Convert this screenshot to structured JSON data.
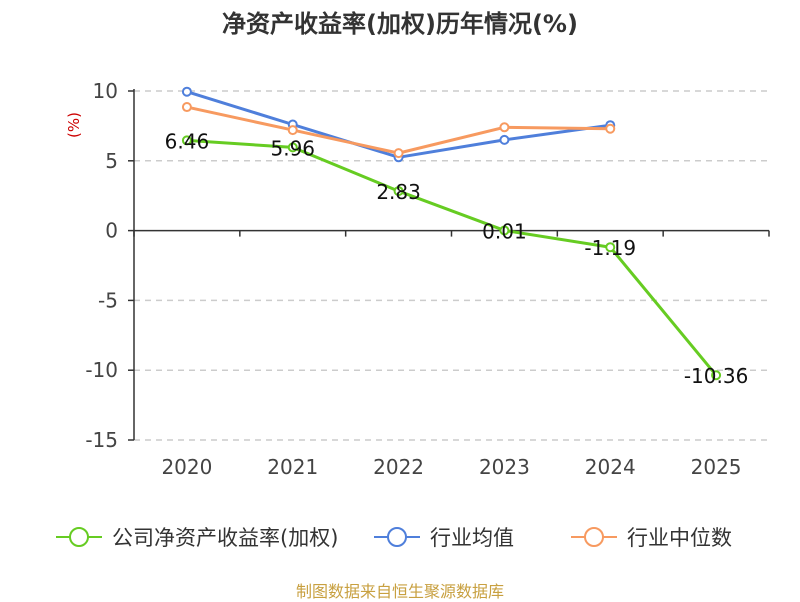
{
  "chart_data": {
    "type": "line",
    "title": "净资产收益率(加权)历年情况(%)",
    "ylabel": "(%)",
    "xlabel": "",
    "categories": [
      "2020",
      "2021",
      "2022",
      "2023",
      "2024",
      "2025"
    ],
    "ylim": [
      -15,
      10
    ],
    "yticks": [
      10,
      5,
      0,
      -5,
      -10,
      -15
    ],
    "ytick_labels": [
      "10",
      "5",
      "0",
      "-5",
      "-10",
      "-15"
    ],
    "grid": "horizontal-dashed",
    "legend_position": "bottom",
    "series": [
      {
        "name": "公司净资产收益率(加权)",
        "color": "#66cc22",
        "values": [
          6.46,
          5.96,
          2.83,
          0.01,
          -1.19,
          -10.36
        ],
        "data_labels": [
          "6.46",
          "5.96",
          "2.83",
          "0.01",
          "-1.19",
          "-10.36"
        ]
      },
      {
        "name": "行业均值",
        "color": "#4f7fdb",
        "values": [
          9.95,
          7.6,
          5.25,
          6.5,
          7.55,
          null
        ]
      },
      {
        "name": "行业中位数",
        "color": "#f79a60",
        "values": [
          8.85,
          7.2,
          5.55,
          7.4,
          7.3,
          null
        ]
      }
    ]
  },
  "footer": {
    "source": "制图数据来自恒生聚源数据库"
  },
  "colors": {
    "axis": "#333333",
    "grid": "#cccccc",
    "ylabel": "#cc0000",
    "source": "#c8a040"
  }
}
